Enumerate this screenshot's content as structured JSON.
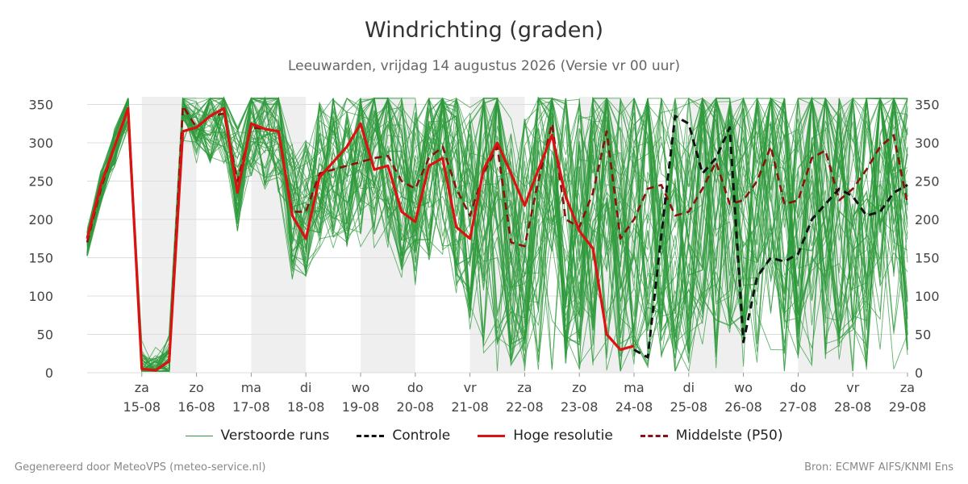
{
  "title": "Windrichting (graden)",
  "subtitle": "Leeuwarden, vrijdag 14 augustus 2026 (Versie vr 00 uur)",
  "footer": {
    "left": "Gegenereerd door MeteoVPS (meteo-service.nl)",
    "right": "Bron: ECMWF AIFS/KNMI Ens"
  },
  "legend": [
    {
      "label": "Verstoorde runs",
      "color": "#2e9a3b",
      "style": "thin"
    },
    {
      "label": "Controle",
      "color": "#111111",
      "style": "dashed"
    },
    {
      "label": "Hoge resolutie",
      "color": "#dd1111",
      "style": "solid"
    },
    {
      "label": "Middelste (P50)",
      "color": "#8b1010",
      "style": "dashed"
    }
  ],
  "chart_data": {
    "type": "line",
    "x_unit": "day index (0 = vr 14-08 00 uur)",
    "xlim": [
      0,
      15
    ],
    "ylim": [
      0,
      360
    ],
    "yticks": [
      0,
      50,
      100,
      150,
      200,
      250,
      300,
      350
    ],
    "grid": true,
    "legend_position": "bottom",
    "x_ticks": [
      {
        "x": 1,
        "day": "za",
        "date": "15-08"
      },
      {
        "x": 2,
        "day": "zo",
        "date": "16-08"
      },
      {
        "x": 3,
        "day": "ma",
        "date": "17-08"
      },
      {
        "x": 4,
        "day": "di",
        "date": "18-08"
      },
      {
        "x": 5,
        "day": "wo",
        "date": "19-08"
      },
      {
        "x": 6,
        "day": "do",
        "date": "20-08"
      },
      {
        "x": 7,
        "day": "vr",
        "date": "21-08"
      },
      {
        "x": 8,
        "day": "za",
        "date": "22-08"
      },
      {
        "x": 9,
        "day": "zo",
        "date": "23-08"
      },
      {
        "x": 10,
        "day": "ma",
        "date": "24-08"
      },
      {
        "x": 11,
        "day": "di",
        "date": "25-08"
      },
      {
        "x": 12,
        "day": "wo",
        "date": "26-08"
      },
      {
        "x": 13,
        "day": "do",
        "date": "27-08"
      },
      {
        "x": 14,
        "day": "vr",
        "date": "28-08"
      },
      {
        "x": 15,
        "day": "za",
        "date": "29-08"
      }
    ],
    "weekend_shading": [
      [
        1,
        2
      ],
      [
        3,
        4
      ],
      [
        5,
        6
      ],
      [
        7,
        8
      ],
      [
        9,
        10
      ],
      [
        11,
        12
      ],
      [
        13,
        14
      ]
    ],
    "controle": {
      "name": "Controle",
      "x": [
        10,
        10.25,
        10.5,
        10.75,
        11,
        11.25,
        11.5,
        11.75,
        12,
        12.25,
        12.5,
        12.75,
        13,
        13.25,
        13.5,
        13.75,
        14,
        14.25,
        14.5,
        14.75,
        15
      ],
      "y": [
        30,
        20,
        180,
        335,
        325,
        260,
        280,
        320,
        40,
        125,
        150,
        145,
        155,
        200,
        220,
        240,
        230,
        205,
        210,
        235,
        245
      ]
    },
    "hoge_resolutie": {
      "name": "Hoge resolutie",
      "x": [
        0,
        0.25,
        0.5,
        0.75,
        1,
        1.25,
        1.5,
        1.75,
        2,
        2.25,
        2.5,
        2.75,
        3,
        3.25,
        3.5,
        3.75,
        4,
        4.25,
        4.5,
        4.75,
        5,
        5.25,
        5.5,
        5.75,
        6,
        6.25,
        6.5,
        6.75,
        7,
        7.25,
        7.5,
        7.75,
        8,
        8.25,
        8.5,
        8.75,
        9,
        9.25,
        9.5,
        9.75,
        10
      ],
      "y": [
        175,
        245,
        295,
        345,
        5,
        3,
        15,
        315,
        320,
        335,
        345,
        235,
        325,
        318,
        315,
        205,
        175,
        255,
        275,
        295,
        325,
        265,
        270,
        210,
        197,
        270,
        280,
        190,
        175,
        265,
        300,
        260,
        218,
        265,
        310,
        230,
        185,
        162,
        50,
        30,
        35
      ]
    },
    "middelste_p50": {
      "name": "Middelste (P50)",
      "x": [
        0,
        0.25,
        0.5,
        0.75,
        1,
        1.25,
        1.5,
        1.75,
        2,
        2.25,
        2.5,
        2.75,
        3,
        3.25,
        3.5,
        3.75,
        4,
        4.25,
        4.5,
        4.75,
        5,
        5.25,
        5.5,
        5.75,
        6,
        6.25,
        6.5,
        6.75,
        7,
        7.25,
        7.5,
        7.75,
        8,
        8.25,
        8.5,
        8.75,
        9,
        9.25,
        9.5,
        9.75,
        10,
        10.25,
        10.5,
        10.75,
        11,
        11.25,
        11.5,
        11.75,
        12,
        12.25,
        12.5,
        12.75,
        13,
        13.25,
        13.5,
        13.75,
        14,
        14.25,
        14.5,
        14.75,
        15
      ],
      "y": [
        170,
        240,
        295,
        345,
        5,
        3,
        15,
        348,
        320,
        335,
        338,
        250,
        320,
        318,
        315,
        210,
        210,
        260,
        265,
        270,
        275,
        280,
        283,
        250,
        240,
        280,
        295,
        240,
        205,
        260,
        295,
        170,
        165,
        250,
        325,
        200,
        190,
        235,
        315,
        175,
        200,
        240,
        245,
        205,
        210,
        240,
        275,
        220,
        225,
        250,
        295,
        220,
        225,
        280,
        290,
        225,
        240,
        265,
        295,
        310,
        220
      ]
    },
    "verstoorde_runs_count": 50
  }
}
